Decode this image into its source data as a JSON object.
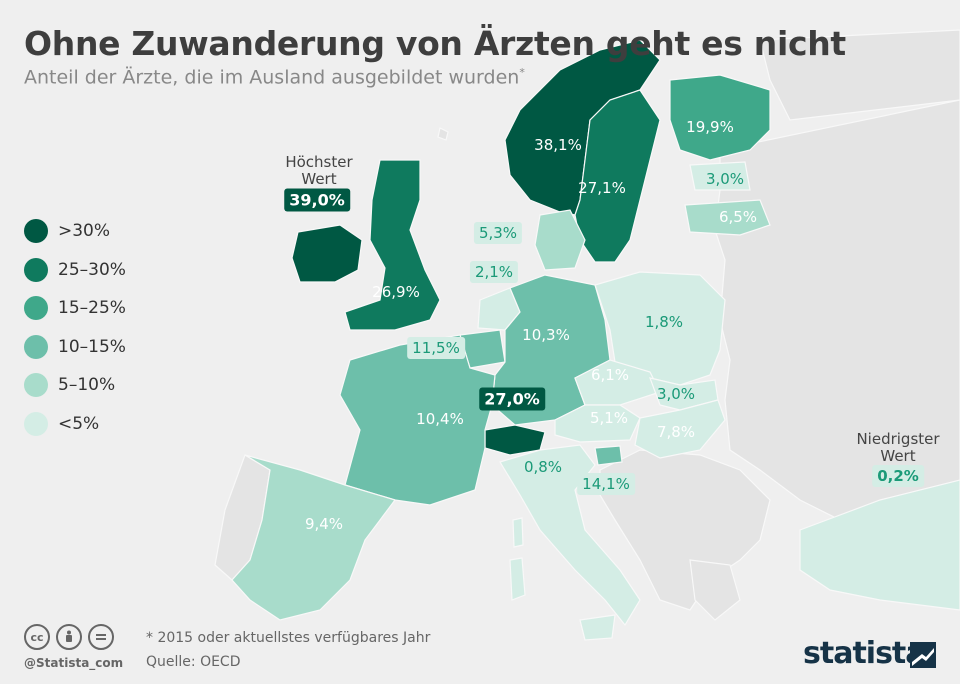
{
  "title": "Ohne Zuwanderung von Ärzten geht es nicht",
  "subtitle": "Anteil der Ärzte, die im Ausland ausgebildet wurden",
  "subtitle_mark": "*",
  "colors": {
    "over30": "#005843",
    "r25_30": "#0f7a5e",
    "r15_25": "#3fa88a",
    "r10_15": "#6dbfaa",
    "r5_10": "#a8dccb",
    "under5": "#d4ede5",
    "land_other": "#e4e4e4",
    "background": "#efefef"
  },
  "legend": [
    {
      "label": ">30%",
      "color": "#005843"
    },
    {
      "label": "25–30%",
      "color": "#0f7a5e"
    },
    {
      "label": "15–25%",
      "color": "#3fa88a"
    },
    {
      "label": "10–15%",
      "color": "#6dbfaa"
    },
    {
      "label": "5–10%",
      "color": "#a8dccb"
    },
    {
      "label": "<5%",
      "color": "#d4ede5"
    }
  ],
  "countries": {
    "norway": "38,1%",
    "finland": "19,9%",
    "estonia": "3,0%",
    "latvia": "6,5%",
    "sweden": "27,1%",
    "denmark": "5,3%",
    "netherlands": "2,1%",
    "ireland": "39,0%",
    "uk": "26,9%",
    "belgium": "11,5%",
    "germany": "10,3%",
    "poland": "1,8%",
    "czechia": "6,1%",
    "slovakia": "3,0%",
    "austria": "5,1%",
    "hungary": "7,8%",
    "switzerland": "27,0%",
    "france": "10,4%",
    "italy": "0,8%",
    "slovenia": "14,1%",
    "spain": "9,4%",
    "turkey": "0,2%"
  },
  "annotations": {
    "highest": "Höchster\nWert",
    "lowest": "Niedrigster\nWert"
  },
  "footnote": "* 2015 oder aktuellstes verfügbares Jahr",
  "source": "Quelle: OECD",
  "handle": "@Statista_com",
  "brand": "statista"
}
